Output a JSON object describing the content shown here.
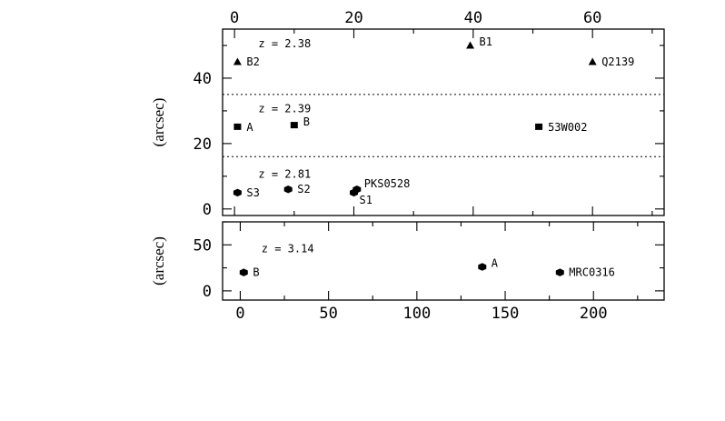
{
  "chart_data": [
    {
      "type": "scatter",
      "panel": "top",
      "ylabel": "(arcsec)",
      "xlabel": "",
      "xlim": [
        -2,
        72
      ],
      "ylim": [
        -2,
        55
      ],
      "xticks_top": [
        0,
        20,
        40,
        60
      ],
      "yticks": [
        0,
        20,
        40
      ],
      "groups": [
        {
          "redshift_label": "z = 2.38",
          "label_pos": [
            4,
            49.5
          ],
          "marker": "triangle",
          "points": [
            {
              "label": "B2",
              "x": 0.5,
              "y": 45
            },
            {
              "label": "B1",
              "x": 39.5,
              "y": 50
            },
            {
              "label": "Q2139",
              "x": 60,
              "y": 45
            }
          ]
        },
        {
          "redshift_label": "z = 2.39",
          "label_pos": [
            4,
            29.5
          ],
          "marker": "square",
          "points": [
            {
              "label": "A",
              "x": 0.5,
              "y": 25
            },
            {
              "label": "B",
              "x": 10,
              "y": 25.5
            },
            {
              "label": "53W002",
              "x": 51,
              "y": 25
            }
          ]
        },
        {
          "redshift_label": "z = 2.81",
          "label_pos": [
            4,
            9.5
          ],
          "marker": "hexagon",
          "points": [
            {
              "label": "S3",
              "x": 0.5,
              "y": 5
            },
            {
              "label": "S2",
              "x": 9,
              "y": 6
            },
            {
              "label": "PKS0528",
              "x": 20.5,
              "y": 6
            },
            {
              "label": "S1",
              "x": 20,
              "y": 5
            }
          ]
        }
      ],
      "separators_y": [
        35,
        16
      ]
    },
    {
      "type": "scatter",
      "panel": "bottom",
      "ylabel": "(arcsec)",
      "xlabel": "",
      "xlim": [
        -10,
        240
      ],
      "ylim": [
        -10,
        75
      ],
      "xticks_bottom": [
        0,
        50,
        100,
        150,
        200
      ],
      "yticks": [
        0,
        50
      ],
      "groups": [
        {
          "redshift_label": "z = 3.14",
          "label_pos": [
            12,
            42
          ],
          "marker": "hexagon",
          "points": [
            {
              "label": "B",
              "x": 2,
              "y": 20
            },
            {
              "label": "A",
              "x": 137,
              "y": 26
            },
            {
              "label": "MRC0316",
              "x": 181,
              "y": 20
            }
          ]
        }
      ]
    }
  ]
}
